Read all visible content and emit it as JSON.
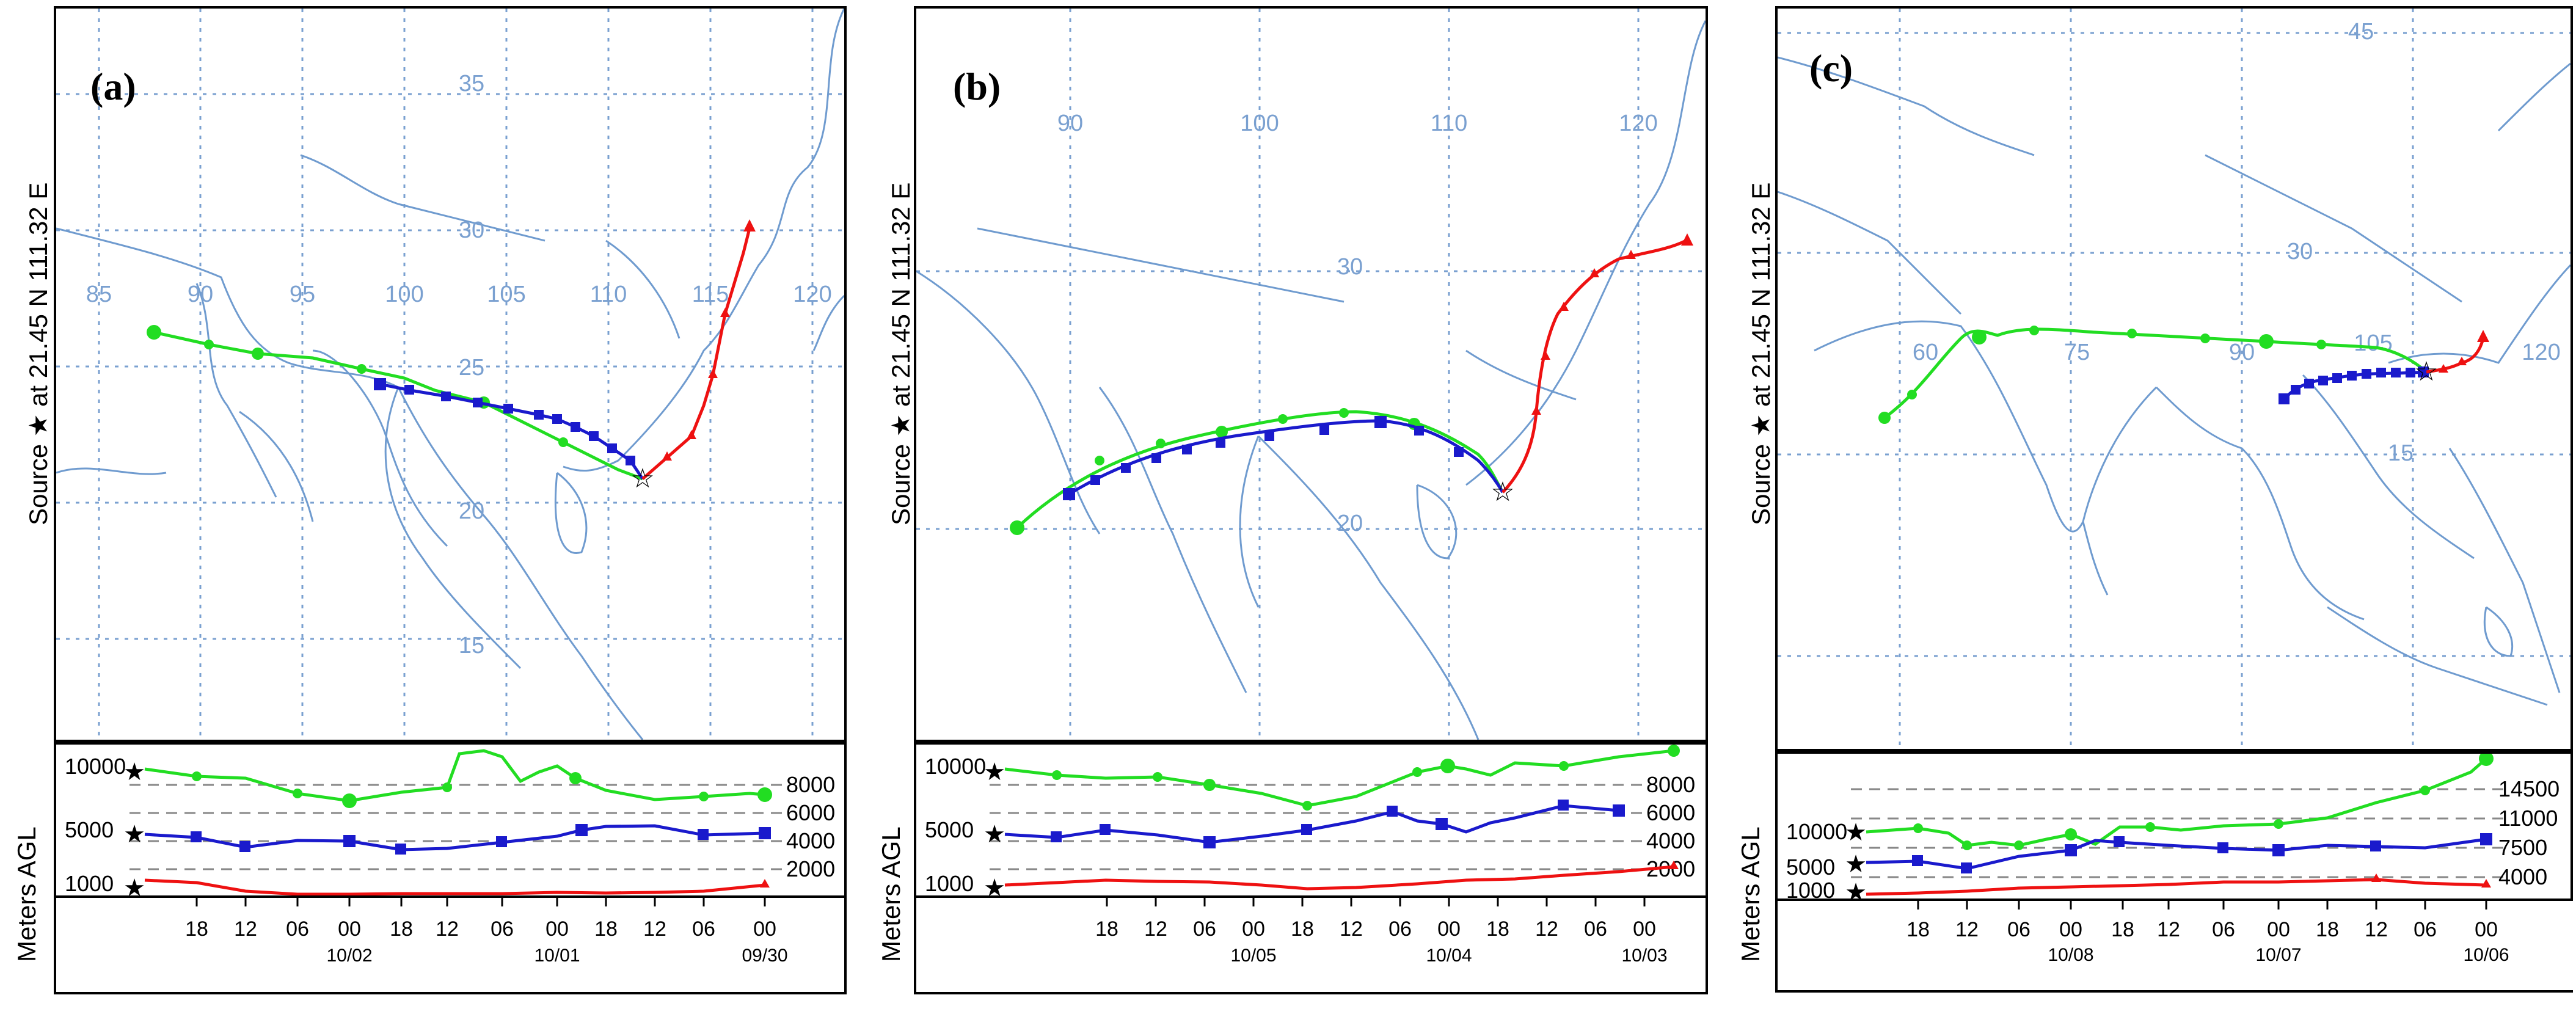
{
  "panels": [
    {
      "id": "a",
      "label": "(a)",
      "source_label": "Source ★ at 21.45 N 111.32 E",
      "elev_label": "Meters AGL",
      "lon_labels": [
        "85",
        "90",
        "95",
        "100",
        "105",
        "110",
        "115",
        "120"
      ],
      "lat_labels": [
        "35",
        "30",
        "25",
        "20",
        "15"
      ],
      "height_left": [
        "10000",
        "5000",
        "1000"
      ],
      "height_right": [
        "8000",
        "6000",
        "4000",
        "2000"
      ],
      "time_ticks": [
        "18",
        "12",
        "06",
        "00",
        "18",
        "12",
        "06",
        "00",
        "18",
        "12",
        "06",
        "00"
      ],
      "date_labels": [
        "10/02",
        "10/01",
        "09/30"
      ],
      "colors": {
        "green": "#22dd22",
        "blue": "#1a1acc",
        "red": "#ee1111"
      }
    },
    {
      "id": "b",
      "label": "(b)",
      "source_label": "Source ★ at 21.45 N 111.32 E",
      "elev_label": "Meters AGL",
      "lon_labels": [
        "90",
        "100",
        "110",
        "120"
      ],
      "lat_labels": [
        "30",
        "20"
      ],
      "height_left": [
        "10000",
        "5000",
        "1000"
      ],
      "height_right": [
        "8000",
        "6000",
        "4000",
        "2000"
      ],
      "time_ticks": [
        "18",
        "12",
        "06",
        "00",
        "18",
        "12",
        "06",
        "00",
        "18",
        "12",
        "06",
        "00"
      ],
      "date_labels": [
        "10/05",
        "10/04",
        "10/03"
      ],
      "colors": {
        "green": "#22dd22",
        "blue": "#1a1acc",
        "red": "#ee1111"
      }
    },
    {
      "id": "c",
      "label": "(c)",
      "source_label": "Source ★ at 21.45 N 111.32 E",
      "elev_label": "Meters AGL",
      "lon_labels": [
        "60",
        "75",
        "90",
        "105",
        "120"
      ],
      "lat_labels": [
        "45",
        "30",
        "15"
      ],
      "height_left": [
        "10000",
        "5000",
        "1000"
      ],
      "height_right": [
        "14500",
        "11000",
        "7500",
        "4000"
      ],
      "time_ticks": [
        "18",
        "12",
        "06",
        "00",
        "18",
        "12",
        "06",
        "00",
        "18",
        "12",
        "06",
        "00"
      ],
      "date_labels": [
        "10/08",
        "10/07",
        "10/06"
      ],
      "colors": {
        "green": "#22dd22",
        "blue": "#1a1acc",
        "red": "#ee1111"
      }
    }
  ]
}
